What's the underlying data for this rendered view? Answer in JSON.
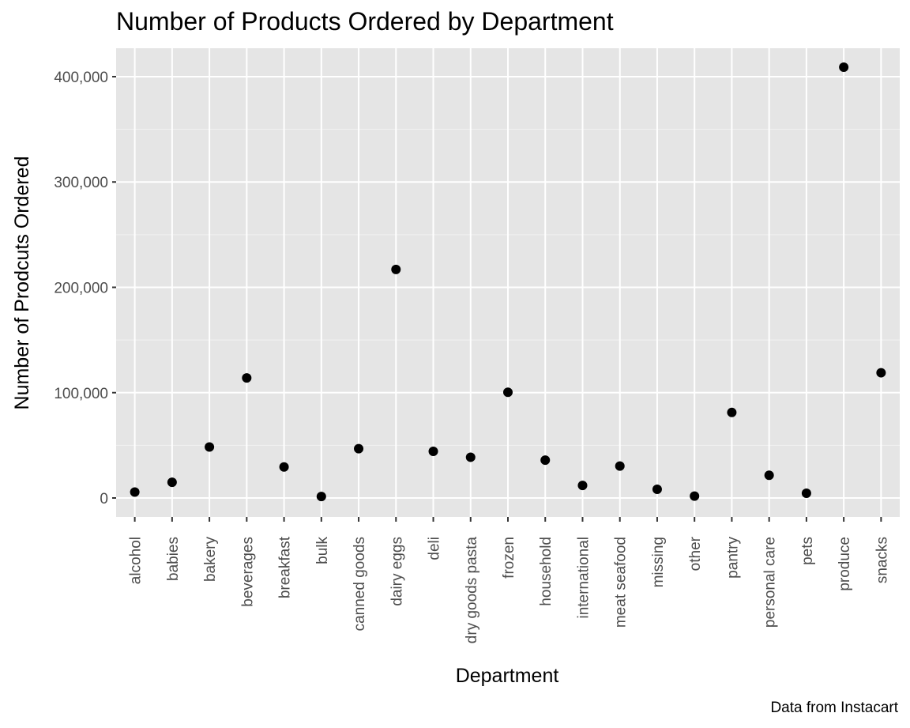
{
  "chart_data": {
    "type": "scatter",
    "title": "Number of Products Ordered by Department",
    "xlabel": "Department",
    "ylabel": "Number of Prodcuts Ordered",
    "caption": "Data from Instacart",
    "categories": [
      "alcohol",
      "babies",
      "bakery",
      "beverages",
      "breakfast",
      "bulk",
      "canned goods",
      "dairy eggs",
      "deli",
      "dry goods pasta",
      "frozen",
      "household",
      "international",
      "meat seafood",
      "missing",
      "other",
      "pantry",
      "personal care",
      "pets",
      "produce",
      "snacks"
    ],
    "values": [
      5600,
      14900,
      48400,
      114000,
      29500,
      1400,
      46800,
      217000,
      44300,
      38700,
      100400,
      35900,
      11900,
      30300,
      8300,
      1800,
      81200,
      21600,
      4500,
      409000,
      118900
    ],
    "yticks": [
      0,
      100000,
      200000,
      300000,
      400000
    ],
    "ytick_labels": [
      "0",
      "100,000",
      "200,000",
      "300,000",
      "400,000"
    ],
    "ylim": [
      -18000,
      427000
    ],
    "grid": true,
    "colors": {
      "panel": "#e5e5e5",
      "grid_major": "#ffffff",
      "grid_minor": "#f2f2f2",
      "point": "#000000",
      "tick": "#333333"
    }
  }
}
